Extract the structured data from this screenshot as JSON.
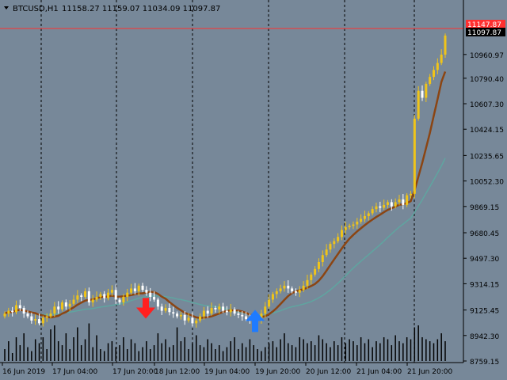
{
  "header": {
    "dropdown_icon": "triangle-down-icon",
    "symbol": "BTCUSD,H1",
    "ohlc": "11158.27 11159.07 11034.09 11097.87"
  },
  "colors": {
    "background": "#778899",
    "bull_candle": "#F0C419",
    "bear_candle": "#FFFFFF",
    "volume": "#000000",
    "fast_ma": "#8B4513",
    "slow_ma": "#5FA5A0",
    "sell_arrow": "#FF2020",
    "buy_arrow": "#1E7BFF",
    "price_line": "#FF3030",
    "separator": "#000000"
  },
  "price_labels": {
    "high_line": "11147.87",
    "current": "11097.87"
  },
  "chart_data": {
    "type": "candlestick",
    "symbol": "BTCUSD",
    "timeframe": "H1",
    "ylim": [
      8759.15,
      11250
    ],
    "y_ticks": [
      "10960.97",
      "10790.40",
      "10607.30",
      "10424.15",
      "10235.65",
      "10052.30",
      "9869.15",
      "9680.45",
      "9497.30",
      "9314.15",
      "9125.45",
      "8942.30",
      "8759.15"
    ],
    "x_ticks": [
      "16 Jun 2019",
      "17 Jun 04:00",
      "17 Jun 20:00",
      "18 Jun 12:00",
      "19 Jun 04:00",
      "19 Jun 20:00",
      "20 Jun 12:00",
      "21 Jun 04:00",
      "21 Jun 20:00"
    ],
    "signals": [
      {
        "type": "sell",
        "price": 9120
      },
      {
        "type": "buy",
        "price": 9070
      }
    ],
    "series": [
      {
        "kind": "candles",
        "close": [
          9100,
          9120,
          9110,
          9160,
          9140,
          9100,
          9080,
          9050,
          9060,
          9030,
          9070,
          9080,
          9100,
          9150,
          9130,
          9180,
          9150,
          9170,
          9200,
          9230,
          9220,
          9260,
          9180,
          9200,
          9220,
          9240,
          9210,
          9250,
          9270,
          9200,
          9180,
          9220,
          9250,
          9280,
          9260,
          9300,
          9270,
          9250,
          9220,
          9200,
          9150,
          9120,
          9140,
          9110,
          9100,
          9080,
          9090,
          9050,
          9070,
          9030,
          9050,
          9080,
          9120,
          9100,
          9140,
          9130,
          9150,
          9120,
          9110,
          9130,
          9100,
          9090,
          9080,
          9060,
          9050,
          9070,
          9050,
          9100,
          9150,
          9200,
          9240,
          9260,
          9280,
          9300,
          9280,
          9260,
          9250,
          9270,
          9300,
          9340,
          9380,
          9420,
          9470,
          9520,
          9560,
          9600,
          9620,
          9650,
          9700,
          9720,
          9730,
          9740,
          9760,
          9780,
          9800,
          9820,
          9850,
          9870,
          9860,
          9880,
          9900,
          9870,
          9900,
          9920,
          9880,
          9950,
          9960,
          10500,
          10700,
          10650,
          10750,
          10800,
          10850,
          10900,
          10960,
          11097
        ]
      },
      {
        "kind": "volume",
        "values": [
          30,
          50,
          20,
          60,
          40,
          70,
          35,
          25,
          55,
          45,
          60,
          30,
          80,
          90,
          50,
          40,
          70,
          30,
          60,
          85,
          40,
          55,
          95,
          35,
          65,
          30,
          25,
          45,
          50,
          35,
          40,
          60,
          30,
          55,
          45,
          25,
          35,
          50,
          30,
          40,
          70,
          45,
          55,
          35,
          40,
          85,
          50,
          60,
          30,
          45,
          65,
          40,
          35,
          55,
          45,
          30,
          40,
          25,
          35,
          50,
          60,
          30,
          45,
          35,
          55,
          40,
          30,
          25,
          35,
          45,
          50,
          35,
          55,
          70,
          45,
          40,
          35,
          60,
          55,
          45,
          50,
          40,
          65,
          55,
          45,
          35,
          50,
          40,
          60,
          45,
          55,
          50,
          40,
          60,
          45,
          55,
          35,
          50,
          45,
          60,
          55,
          40,
          65,
          50,
          45,
          60,
          55,
          85,
          90,
          60,
          55,
          50,
          45,
          55,
          70,
          50
        ]
      },
      {
        "kind": "ma",
        "name": "fast",
        "values": []
      },
      {
        "kind": "ma",
        "name": "slow",
        "values": []
      }
    ],
    "current_price": 11097.87,
    "high_line_price": 11147.87,
    "vertical_separators": [
      52,
      147,
      243,
      339,
      435,
      523
    ]
  }
}
